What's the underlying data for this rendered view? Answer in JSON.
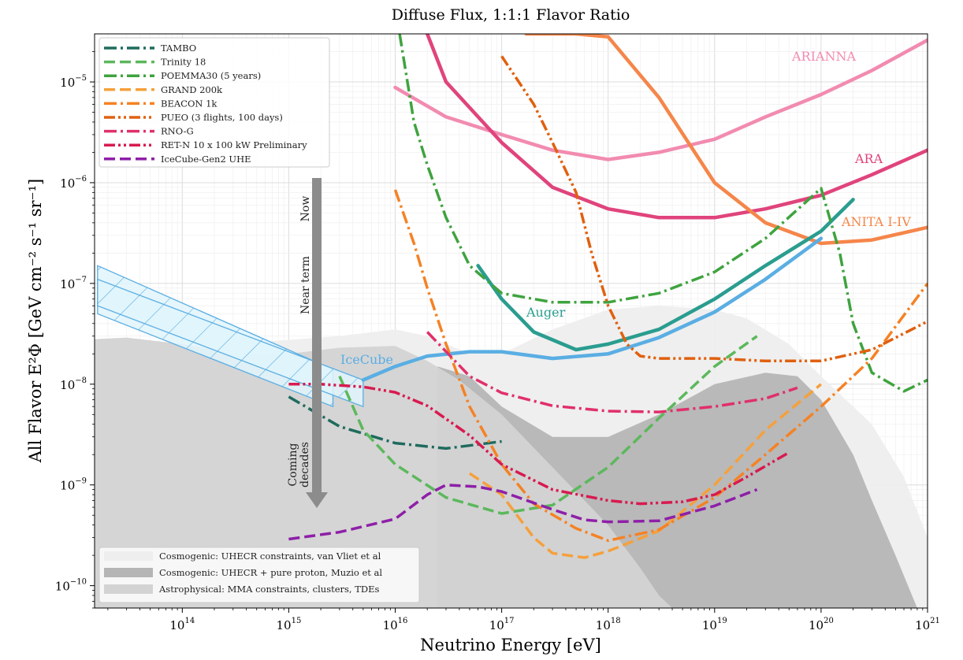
{
  "chart_data": {
    "type": "line",
    "title": "Diffuse Flux, 1:1:1 Flavor Ratio",
    "xlabel": "Neutrino Energy [eV]",
    "ylabel": "All Flavor E²Φ [GeV cm⁻² s⁻¹ sr⁻¹]",
    "xscale": "log",
    "yscale": "log",
    "xlim": [
      15000000000000.0,
      1e+21
    ],
    "ylim": [
      6e-11,
      3e-05
    ],
    "grid": true,
    "xticks": [
      {
        "base": "10",
        "exp": "14",
        "value": 100000000000000.0
      },
      {
        "base": "10",
        "exp": "15",
        "value": 1000000000000000.0
      },
      {
        "base": "10",
        "exp": "16",
        "value": 1e+16
      },
      {
        "base": "10",
        "exp": "17",
        "value": 1e+17
      },
      {
        "base": "10",
        "exp": "18",
        "value": 1e+18
      },
      {
        "base": "10",
        "exp": "19",
        "value": 1e+19
      },
      {
        "base": "10",
        "exp": "20",
        "value": 1e+20
      },
      {
        "base": "10",
        "exp": "21",
        "value": 1e+21
      }
    ],
    "yticks": [
      {
        "base": "10",
        "exp": "−10",
        "value": 1e-10
      },
      {
        "base": "10",
        "exp": "−9",
        "value": 1e-09
      },
      {
        "base": "10",
        "exp": "−8",
        "value": 1e-08
      },
      {
        "base": "10",
        "exp": "−7",
        "value": 1e-07
      },
      {
        "base": "10",
        "exp": "−6",
        "value": 1e-06
      },
      {
        "base": "10",
        "exp": "−5",
        "value": 1e-05
      }
    ],
    "legend_placement": "upper-left",
    "series": [
      {
        "name": "TAMBO",
        "color": "#1f6b5e",
        "dash": "dashdot",
        "x": [
          1000000000000000.0,
          3000000000000000.0,
          1e+16,
          3e+16,
          1e+17
        ],
        "y": [
          7.5e-09,
          3.8e-09,
          2.6e-09,
          2.3e-09,
          2.7e-09
        ]
      },
      {
        "name": "Trinity 18",
        "color": "#5cb85c",
        "dash": "dash",
        "x": [
          3000000000000000.0,
          5000000000000000.0,
          1e+16,
          3e+16,
          1e+17,
          3e+17,
          1e+18,
          3e+18,
          1e+19,
          2.5e+19
        ],
        "y": [
          1.2e-08,
          3.5e-09,
          1.6e-09,
          7.5e-10,
          5.2e-10,
          6.3e-10,
          1.5e-09,
          4.6e-09,
          1.5e-08,
          3e-08
        ]
      },
      {
        "name": "POEMMA30 (5 years)",
        "color": "#3fa33f",
        "dash": "dashdot",
        "x": [
          1.1e+16,
          1.5e+16,
          2e+16,
          3e+16,
          5e+16,
          1e+17,
          3e+17,
          1e+18,
          3e+18,
          1e+19,
          3e+19,
          1e+20,
          1.5e+20,
          2e+20,
          3e+20,
          6e+20,
          1e+21
        ],
        "y": [
          3e-05,
          4e-06,
          1.5e-06,
          4.5e-07,
          1.5e-07,
          8e-08,
          6.5e-08,
          6.5e-08,
          8e-08,
          1.3e-07,
          2.8e-07,
          8.8e-07,
          2e-07,
          4e-08,
          1.3e-08,
          8.5e-09,
          1.1e-08
        ]
      },
      {
        "name": "GRAND 200k",
        "color": "#f5a03c",
        "dash": "dash",
        "x": [
          5e+16,
          1e+17,
          2e+17,
          3e+17,
          6e+17,
          1e+18,
          3e+18,
          1e+19,
          3e+19,
          1e+20
        ],
        "y": [
          1.3e-09,
          8e-10,
          3e-10,
          2.1e-10,
          1.9e-10,
          2.2e-10,
          3.5e-10,
          1e-09,
          3.5e-09,
          1e-08
        ]
      },
      {
        "name": "BEACON 1k",
        "color": "#f58224",
        "dash": "dashdot",
        "x": [
          1e+16,
          1.5e+16,
          2e+16,
          3e+16,
          5e+16,
          1e+17,
          2e+17,
          5e+17,
          1e+18,
          3e+18,
          1e+19,
          3e+19,
          1e+20,
          3e+20,
          1e+21
        ],
        "y": [
          8.5e-07,
          2.5e-07,
          9e-08,
          2.5e-08,
          6e-09,
          1.6e-09,
          6.5e-10,
          3.7e-10,
          2.8e-10,
          3.6e-10,
          7.5e-10,
          2e-09,
          6e-09,
          1.8e-08,
          1e-07
        ]
      },
      {
        "name": "PUEO (3 flights, 100 days)",
        "color": "#e0600f",
        "dash": "dashdotdot",
        "x": [
          1e+17,
          2e+17,
          3e+17,
          5e+17,
          7e+17,
          1e+18,
          1.5e+18,
          2e+18,
          3e+18,
          1e+19,
          3e+19,
          1e+20,
          3e+20,
          1e+21
        ],
        "y": [
          1.8e-05,
          6e-06,
          2.5e-06,
          8e-07,
          2e-07,
          6e-08,
          2.5e-08,
          1.9e-08,
          1.8e-08,
          1.8e-08,
          1.7e-08,
          1.7e-08,
          2.2e-08,
          4.2e-08
        ]
      },
      {
        "name": "RNO-G",
        "color": "#e0306a",
        "dash": "dashdot",
        "x": [
          2e+16,
          5e+16,
          1e+17,
          3e+17,
          1e+18,
          3e+18,
          1e+19,
          3e+19,
          6e+19
        ],
        "y": [
          3.3e-08,
          1.2e-08,
          8.2e-09,
          6.1e-09,
          5.4e-09,
          5.3e-09,
          6e-09,
          7.2e-09,
          9.2e-09
        ]
      },
      {
        "name": "RET-N 10 x 100 kW Preliminary",
        "color": "#d81a50",
        "dash": "dashdotdot",
        "x": [
          1000000000000000.0,
          2000000000000000.0,
          5000000000000000.0,
          1e+16,
          2e+16,
          5e+16,
          1e+17,
          3e+17,
          1e+18,
          2e+18,
          5e+18,
          1e+19,
          2e+19,
          5e+19
        ],
        "y": [
          1e-08,
          1e-08,
          9.4e-09,
          8.3e-09,
          6.1e-09,
          3.1e-09,
          1.6e-09,
          9e-10,
          7e-10,
          6.5e-10,
          6.8e-10,
          8e-10,
          1.2e-09,
          2.1e-09
        ]
      },
      {
        "name": "IceCube-Gen2 UHE",
        "color": "#8e1fa8",
        "dash": "dash",
        "x": [
          1000000000000000.0,
          3000000000000000.0,
          1e+16,
          2e+16,
          3e+16,
          6e+16,
          1e+17,
          3e+17,
          6e+17,
          1e+18,
          3e+18,
          1e+19,
          2.5e+19
        ],
        "y": [
          2.9e-10,
          3.4e-10,
          4.6e-10,
          8e-10,
          1e-09,
          9.6e-10,
          8.6e-10,
          5.7e-10,
          4.5e-10,
          4.3e-10,
          4.4e-10,
          6.2e-10,
          9e-10
        ]
      }
    ],
    "reference_curves": [
      {
        "label": "ARIANNA",
        "color": "#f28bb0",
        "x": [
          1e+16,
          3e+16,
          1e+17,
          3e+17,
          1e+18,
          3e+18,
          1e+19,
          3e+19,
          1e+20,
          3e+20,
          1e+21
        ],
        "y": [
          8.8e-06,
          4.5e-06,
          3e-06,
          2.1e-06,
          1.7e-06,
          2e-06,
          2.7e-06,
          4.5e-06,
          7.5e-06,
          1.3e-05,
          2.6e-05
        ]
      },
      {
        "label": "ARA",
        "color": "#e0447c",
        "x": [
          2e+16,
          3e+16,
          1e+17,
          3e+17,
          1e+18,
          3e+18,
          1e+19,
          3e+19,
          1e+20,
          3e+20,
          1e+21
        ],
        "y": [
          3e-05,
          1e-05,
          2.5e-06,
          9e-07,
          5.5e-07,
          4.5e-07,
          4.5e-07,
          5.5e-07,
          7.5e-07,
          1.2e-06,
          2.1e-06
        ]
      },
      {
        "label": "ANITA I-IV",
        "color": "#f5864a",
        "x": [
          1.7e+17,
          5e+17,
          1e+18,
          3e+18,
          1e+19,
          3e+19,
          1e+20,
          3e+20,
          1e+21
        ],
        "y": [
          3e-05,
          3e-05,
          2.8e-05,
          7e-06,
          1e-06,
          4e-07,
          2.5e-07,
          2.7e-07,
          3.6e-07
        ]
      },
      {
        "label": "Auger",
        "color": "#2a9d8f",
        "x": [
          6e+16,
          1e+17,
          2e+17,
          5e+17,
          1e+18,
          3e+18,
          1e+19,
          3e+19,
          1e+20,
          2e+20
        ],
        "y": [
          1.5e-07,
          7e-08,
          3.3e-08,
          2.2e-08,
          2.5e-08,
          3.5e-08,
          7e-08,
          1.5e-07,
          3.3e-07,
          6.8e-07
        ]
      },
      {
        "label": "IceCube",
        "color": "#5aaee3",
        "x": [
          5000000000000000.0,
          1e+16,
          2e+16,
          5e+16,
          1e+17,
          3e+17,
          1e+18,
          3e+18,
          1e+19,
          3e+19,
          1e+20
        ],
        "y": [
          1.1e-08,
          1.5e-08,
          1.9e-08,
          2.1e-08,
          2.1e-08,
          1.8e-08,
          2e-08,
          2.9e-08,
          5.2e-08,
          1.1e-07,
          2.8e-07
        ]
      }
    ],
    "background_regions": [
      {
        "name": "Cosmogenic: UHECR constraints, van Vliet et al",
        "color": "#eeeeee"
      },
      {
        "name": "Cosmogenic: UHECR + pure proton, Muzio et al",
        "color": "#b5b5b5"
      },
      {
        "name": "Astrophysical: MMA constraints, clusters, TDEs",
        "color": "#d3d3d3"
      }
    ],
    "arrow_labels": [
      "Now",
      "Near term",
      "Coming decades"
    ]
  }
}
